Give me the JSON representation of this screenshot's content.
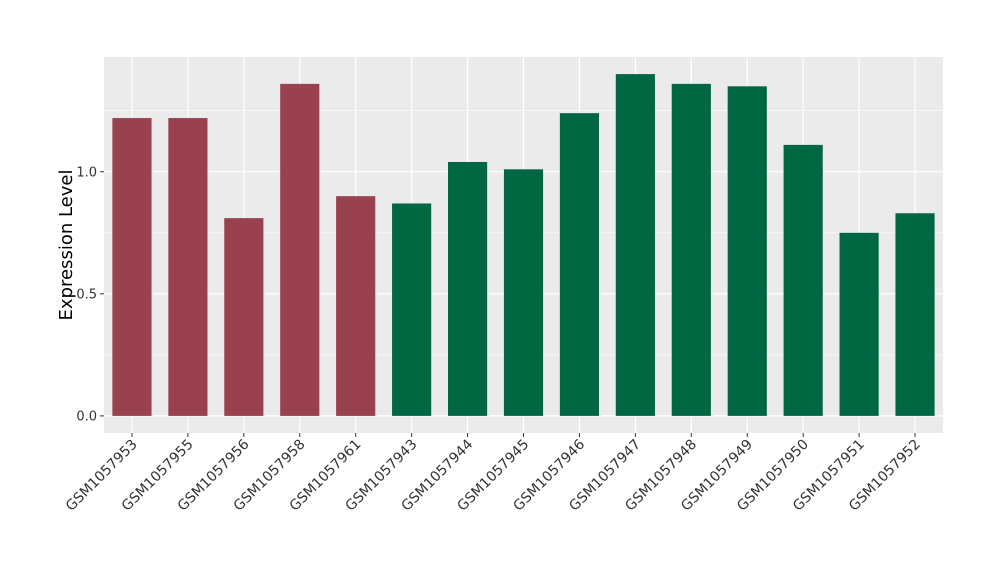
{
  "chart_data": {
    "type": "bar",
    "title": "",
    "xlabel": "",
    "ylabel": "Expression Level",
    "ylim": [
      -0.07,
      1.47
    ],
    "yticks": [
      0.0,
      0.5,
      1.0
    ],
    "ytick_labels": [
      "0.0",
      "0.5",
      "1.0"
    ],
    "grid": true,
    "legend": "none",
    "panel_background": "#ebebeb",
    "grid_color": "#ffffff",
    "categories": [
      "GSM1057953",
      "GSM1057955",
      "GSM1057956",
      "GSM1057958",
      "GSM1057961",
      "GSM1057943",
      "GSM1057944",
      "GSM1057945",
      "GSM1057946",
      "GSM1057947",
      "GSM1057948",
      "GSM1057949",
      "GSM1057950",
      "GSM1057951",
      "GSM1057952"
    ],
    "values": [
      1.22,
      1.22,
      0.81,
      1.36,
      0.9,
      0.87,
      1.04,
      1.01,
      1.24,
      1.4,
      1.36,
      1.35,
      1.11,
      0.75,
      0.83
    ],
    "bar_colors": [
      "#99414f",
      "#99414f",
      "#99414f",
      "#99414f",
      "#99414f",
      "#006743",
      "#006743",
      "#006743",
      "#006743",
      "#006743",
      "#006743",
      "#006743",
      "#006743",
      "#006743",
      "#006743"
    ]
  }
}
